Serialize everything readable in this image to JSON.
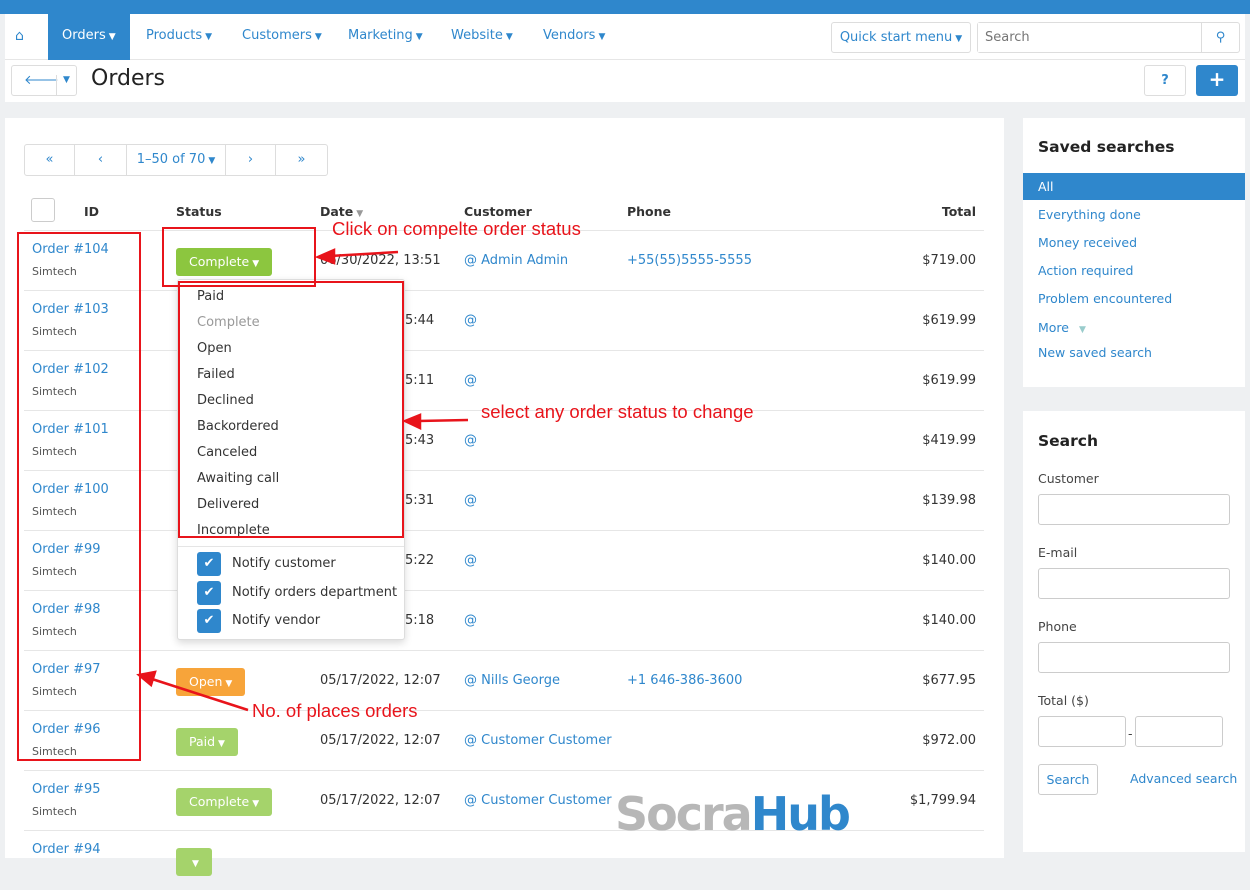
{
  "nav": {
    "items": [
      {
        "label": "Orders",
        "active": true
      },
      {
        "label": "Products"
      },
      {
        "label": "Customers"
      },
      {
        "label": "Marketing"
      },
      {
        "label": "Website"
      },
      {
        "label": "Vendors"
      }
    ],
    "quick_start": "Quick start menu",
    "search_placeholder": "Search"
  },
  "page": {
    "title": "Orders"
  },
  "pager": {
    "first": "«",
    "prev": "‹",
    "range": "1–50 of 70",
    "next": "›",
    "last": "»"
  },
  "columns": {
    "id": "ID",
    "status": "Status",
    "date": "Date",
    "customer": "Customer",
    "phone": "Phone",
    "total": "Total"
  },
  "rows": [
    {
      "id": "Order #104",
      "vendor": "Simtech",
      "status": "Complete",
      "color": "#8cc63f",
      "date": "06/30/2022, 13:51",
      "customer": "@ Admin Admin",
      "phone": "+55(55)5555-5555",
      "total": "$719.00"
    },
    {
      "id": "Order #103",
      "vendor": "Simtech",
      "date_fragment": "5:44",
      "customer": "@",
      "total": "$619.99"
    },
    {
      "id": "Order #102",
      "vendor": "Simtech",
      "date_fragment": "5:11",
      "customer": "@",
      "total": "$619.99"
    },
    {
      "id": "Order #101",
      "vendor": "Simtech",
      "date_fragment": "5:43",
      "customer": "@",
      "total": "$419.99"
    },
    {
      "id": "Order #100",
      "vendor": "Simtech",
      "date_fragment": "5:31",
      "customer": "@",
      "total": "$139.98"
    },
    {
      "id": "Order #99",
      "vendor": "Simtech",
      "date_fragment": "5:22",
      "customer": "@",
      "total": "$140.00"
    },
    {
      "id": "Order #98",
      "vendor": "Simtech",
      "date_fragment": "5:18",
      "customer": "@",
      "total": "$140.00"
    },
    {
      "id": "Order #97",
      "vendor": "Simtech",
      "status": "Open",
      "color": "#f7a43a",
      "date": "05/17/2022, 12:07",
      "customer": "@ Nills George",
      "phone": "+1 646-386-3600",
      "total": "$677.95"
    },
    {
      "id": "Order #96",
      "vendor": "Simtech",
      "status": "Paid",
      "color": "#a5d36b",
      "date": "05/17/2022, 12:07",
      "customer": "@ Customer Customer",
      "total": "$972.00"
    },
    {
      "id": "Order #95",
      "vendor": "Simtech",
      "status": "Complete",
      "color": "#a5d36b",
      "date": "05/17/2022, 12:07",
      "customer": "@ Customer Customer",
      "total": "$1,799.94"
    },
    {
      "id": "Order #94",
      "vendor": "",
      "status": " ",
      "color": "#a5d36b"
    }
  ],
  "status_menu": {
    "options": [
      "Paid",
      "Complete",
      "Open",
      "Failed",
      "Declined",
      "Backordered",
      "Canceled",
      "Awaiting call",
      "Delivered",
      "Incomplete"
    ],
    "disabled": "Complete",
    "notify": [
      "Notify customer",
      "Notify orders department",
      "Notify vendor"
    ]
  },
  "saved_searches": {
    "title": "Saved searches",
    "items": [
      "All",
      "Everything done",
      "Money received",
      "Action required",
      "Problem encountered",
      "More",
      "New saved search"
    ]
  },
  "search_panel": {
    "title": "Search",
    "customer": "Customer",
    "email": "E-mail",
    "phone": "Phone",
    "total": "Total ($)",
    "dash": "-",
    "button": "Search",
    "advanced": "Advanced search"
  },
  "annotations": {
    "click": "Click on compelte order status",
    "select": "select any order status to change",
    "orders": "No. of places orders"
  },
  "watermark": {
    "part1": "Socra",
    "part2": "Hub"
  },
  "colors": {
    "brand": "#2f87cc",
    "annotation": "#e8141b"
  }
}
